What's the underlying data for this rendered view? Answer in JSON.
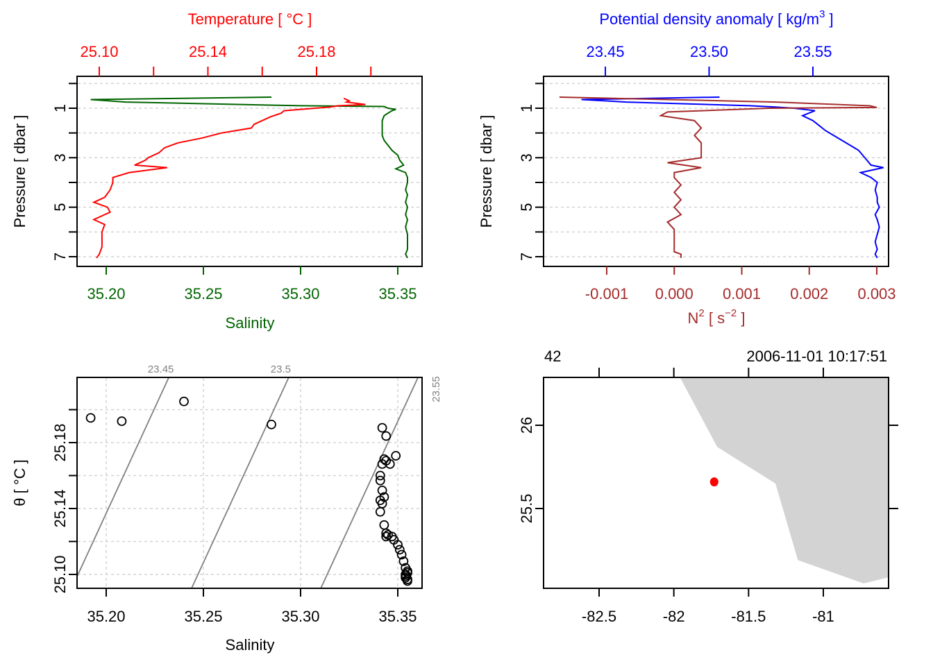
{
  "chart_data": [
    {
      "type": "line",
      "panel": "top-left",
      "title": "",
      "top_axis": {
        "label": "Temperature [ °C ]",
        "color": "#ff0000",
        "ticks": [
          25.1,
          25.12,
          25.14,
          25.16,
          25.18,
          25.2
        ],
        "tick_labels": [
          "25.10",
          "",
          "25.14",
          "",
          "25.18",
          ""
        ]
      },
      "bottom_axis": {
        "label": "Salinity",
        "color": "#006400",
        "ticks": [
          35.2,
          35.25,
          35.3,
          35.35
        ],
        "tick_labels": [
          "35.20",
          "35.25",
          "35.30",
          "35.35"
        ],
        "range": [
          35.1855,
          35.363
        ]
      },
      "left_axis": {
        "label": "Pressure [ dbar ]",
        "ticks": [
          0,
          1,
          2,
          3,
          4,
          5,
          6,
          7
        ],
        "tick_labels": [
          "",
          "1",
          "",
          "3",
          "",
          "5",
          "",
          "7"
        ],
        "range": [
          7.4,
          -0.25
        ],
        "reversed": true
      },
      "grid": "horizontal-dashed",
      "series": [
        {
          "name": "Salinity",
          "color": "#006400",
          "pressure": [
            0.55,
            0.65,
            0.75,
            0.9,
            0.93,
            1.0,
            1.05,
            1.1,
            1.3,
            1.5,
            1.7,
            1.9,
            2.1,
            2.3,
            2.5,
            2.7,
            2.9,
            3.1,
            3.3,
            3.45,
            3.6,
            3.8,
            4.0,
            4.3,
            4.5,
            4.8,
            5.0,
            5.3,
            5.5,
            5.8,
            6.1,
            6.4,
            6.7,
            6.9,
            7.05
          ],
          "values": [
            35.285,
            35.192,
            35.21,
            35.3,
            35.343,
            35.345,
            35.349,
            35.347,
            35.343,
            35.342,
            35.342,
            35.342,
            35.342,
            35.343,
            35.345,
            35.347,
            35.35,
            35.351,
            35.353,
            35.349,
            35.354,
            35.355,
            35.355,
            35.354,
            35.355,
            35.354,
            35.355,
            35.354,
            35.355,
            35.354,
            35.355,
            35.355,
            35.355,
            35.354,
            35.355
          ]
        },
        {
          "name": "Temperature",
          "color": "#ff0000",
          "pressure": [
            0.6,
            0.7,
            0.75,
            0.85,
            0.9,
            0.95,
            1.1,
            1.2,
            1.35,
            1.5,
            1.65,
            1.8,
            2.0,
            2.2,
            2.4,
            2.6,
            2.8,
            3.0,
            3.1,
            3.3,
            3.4,
            3.6,
            3.8,
            4.0,
            4.3,
            4.6,
            4.8,
            5.0,
            5.2,
            5.5,
            5.7,
            6.0,
            6.3,
            6.6,
            6.9,
            7.05
          ],
          "values": [
            25.19,
            25.192,
            25.191,
            25.198,
            25.188,
            25.185,
            25.168,
            25.167,
            25.163,
            25.16,
            25.157,
            25.156,
            25.145,
            25.138,
            25.129,
            25.124,
            25.122,
            25.118,
            25.117,
            25.113,
            25.125,
            25.111,
            25.105,
            25.105,
            25.104,
            25.102,
            25.098,
            25.103,
            25.104,
            25.098,
            25.102,
            25.101,
            25.101,
            25.101,
            25.1,
            25.099
          ]
        }
      ]
    },
    {
      "type": "line",
      "panel": "top-right",
      "title": "",
      "top_axis": {
        "label": "Potential density anomaly [ kg/m³ ]",
        "label_parts": [
          "Potential density anomaly [ kg/m",
          "3",
          " ]"
        ],
        "color": "#0000ff",
        "ticks": [
          23.45,
          23.5,
          23.55
        ],
        "tick_labels": [
          "23.45",
          "23.50",
          "23.55"
        ]
      },
      "bottom_axis": {
        "label": "N² [ s⁻² ]",
        "label_parts": [
          "N",
          "2",
          " [ s",
          "−2",
          " ]"
        ],
        "color": "#a52a2a",
        "ticks": [
          -0.001,
          0.0,
          0.001,
          0.002,
          0.003
        ],
        "tick_labels": [
          "-0.001",
          "0.000",
          "0.001",
          "0.002",
          "0.003"
        ]
      },
      "left_axis": {
        "label": "Pressure [ dbar ]",
        "ticks": [
          0,
          1,
          2,
          3,
          4,
          5,
          6,
          7
        ],
        "tick_labels": [
          "",
          "1",
          "",
          "3",
          "",
          "5",
          "",
          "7"
        ],
        "reversed": true
      },
      "grid": "horizontal-dashed",
      "series": [
        {
          "name": "Potential density anomaly",
          "color": "#0000ff",
          "pressure": [
            0.55,
            0.65,
            0.75,
            0.9,
            0.95,
            1.0,
            1.1,
            1.3,
            1.5,
            1.7,
            1.9,
            2.1,
            2.3,
            2.5,
            2.7,
            2.9,
            3.1,
            3.3,
            3.4,
            3.6,
            3.8,
            4.0,
            4.3,
            4.6,
            4.8,
            5.0,
            5.3,
            5.5,
            5.8,
            6.1,
            6.4,
            6.7,
            6.9,
            7.05
          ],
          "values": [
            23.505,
            23.4385,
            23.46,
            23.5195,
            23.532,
            23.541,
            23.551,
            23.545,
            23.55,
            23.553,
            23.556,
            23.56,
            23.564,
            23.568,
            23.572,
            23.574,
            23.576,
            23.578,
            23.584,
            23.573,
            23.578,
            23.581,
            23.58,
            23.581,
            23.581,
            23.582,
            23.58,
            23.581,
            23.582,
            23.581,
            23.58,
            23.581,
            23.58,
            23.581
          ]
        },
        {
          "name": "N2",
          "color": "#a52a2a",
          "pressure": [
            0.55,
            0.75,
            0.9,
            0.97,
            1.0,
            1.15,
            1.3,
            1.5,
            1.8,
            2.1,
            2.4,
            2.7,
            3.0,
            3.2,
            3.4,
            3.6,
            3.8,
            4.1,
            4.4,
            4.7,
            5.0,
            5.3,
            5.6,
            5.9,
            6.2,
            6.5,
            6.8,
            6.9,
            7.05
          ],
          "values": [
            -0.0017,
            0.0015,
            0.0029,
            0.003,
            0.0014,
            -0.0001,
            -0.0002,
            0.0003,
            0.0004,
            0.0003,
            0.0004,
            0.0004,
            0.0004,
            -0.0001,
            0.0004,
            0.0,
            0.0,
            0.0001,
            0.0,
            0.0001,
            0.0,
            0.0001,
            -0.0001,
            0.0,
            0.0,
            0.0,
            0.0,
            0.0001,
            0.0001
          ]
        }
      ]
    },
    {
      "type": "scatter",
      "panel": "bottom-left",
      "title": "",
      "xlabel": "Salinity",
      "ylabel": "θ [ °C ]",
      "x_ticks": [
        35.2,
        35.25,
        35.3,
        35.35
      ],
      "x_tick_labels": [
        "35.20",
        "35.25",
        "35.30",
        "35.35"
      ],
      "y_ticks": [
        25.1,
        25.12,
        25.14,
        25.16,
        25.18,
        25.2
      ],
      "y_tick_labels": [
        "25.10",
        "",
        "25.14",
        "",
        "25.18",
        ""
      ],
      "xlim": [
        35.1855,
        35.363
      ],
      "ylim": [
        25.0945,
        25.209
      ],
      "grid": "dashed",
      "isopycnals": [
        {
          "label": "23.45",
          "sigma": 23.45
        },
        {
          "label": "23.5",
          "sigma": 23.5
        },
        {
          "label": "23.55",
          "sigma": 23.55
        }
      ],
      "points": {
        "x": [
          35.192,
          35.208,
          35.24,
          35.285,
          35.342,
          35.344,
          35.349,
          35.343,
          35.342,
          35.346,
          35.344,
          35.341,
          35.341,
          35.342,
          35.343,
          35.341,
          35.342,
          35.341,
          35.343,
          35.344,
          35.344,
          35.345,
          35.347,
          35.348,
          35.35,
          35.351,
          35.352,
          35.353,
          35.354,
          35.355,
          35.354,
          35.355,
          35.354,
          35.355,
          35.354,
          35.355
        ],
        "y": [
          25.195,
          25.193,
          25.205,
          25.191,
          25.189,
          25.184,
          25.172,
          25.17,
          25.167,
          25.167,
          25.169,
          25.16,
          25.157,
          25.151,
          25.147,
          25.145,
          25.143,
          25.138,
          25.13,
          25.125,
          25.123,
          25.124,
          25.123,
          25.121,
          25.118,
          25.115,
          25.112,
          25.108,
          25.104,
          25.101,
          25.099,
          25.097,
          25.1,
          25.096,
          25.098,
          25.102
        ]
      }
    },
    {
      "type": "map",
      "panel": "bottom-right",
      "title": "",
      "top_left_label": "42",
      "top_right_label": "2006-11-01 10:17:51",
      "x_ticks": [
        -82.5,
        -82,
        -81.5,
        -81
      ],
      "x_tick_labels": [
        "-82.5",
        "-82",
        "-81.5",
        "-81"
      ],
      "y_ticks": [
        26,
        25.5
      ],
      "y_tick_labels": [
        "26",
        "25.5"
      ],
      "xlim": [
        -82.875,
        -80.55
      ],
      "ylim": [
        25.03,
        26.29
      ],
      "land_color": "#d3d3d3",
      "coastline": {
        "lon": [
          -81.96,
          -81.71,
          -81.32,
          -81.17,
          -80.73,
          -80.55,
          -80.55
        ],
        "lat": [
          26.29,
          25.87,
          25.65,
          25.19,
          25.05,
          25.09,
          26.29
        ]
      },
      "station": {
        "lon": -81.73,
        "lat": 25.66,
        "color": "#ff0000"
      }
    }
  ]
}
